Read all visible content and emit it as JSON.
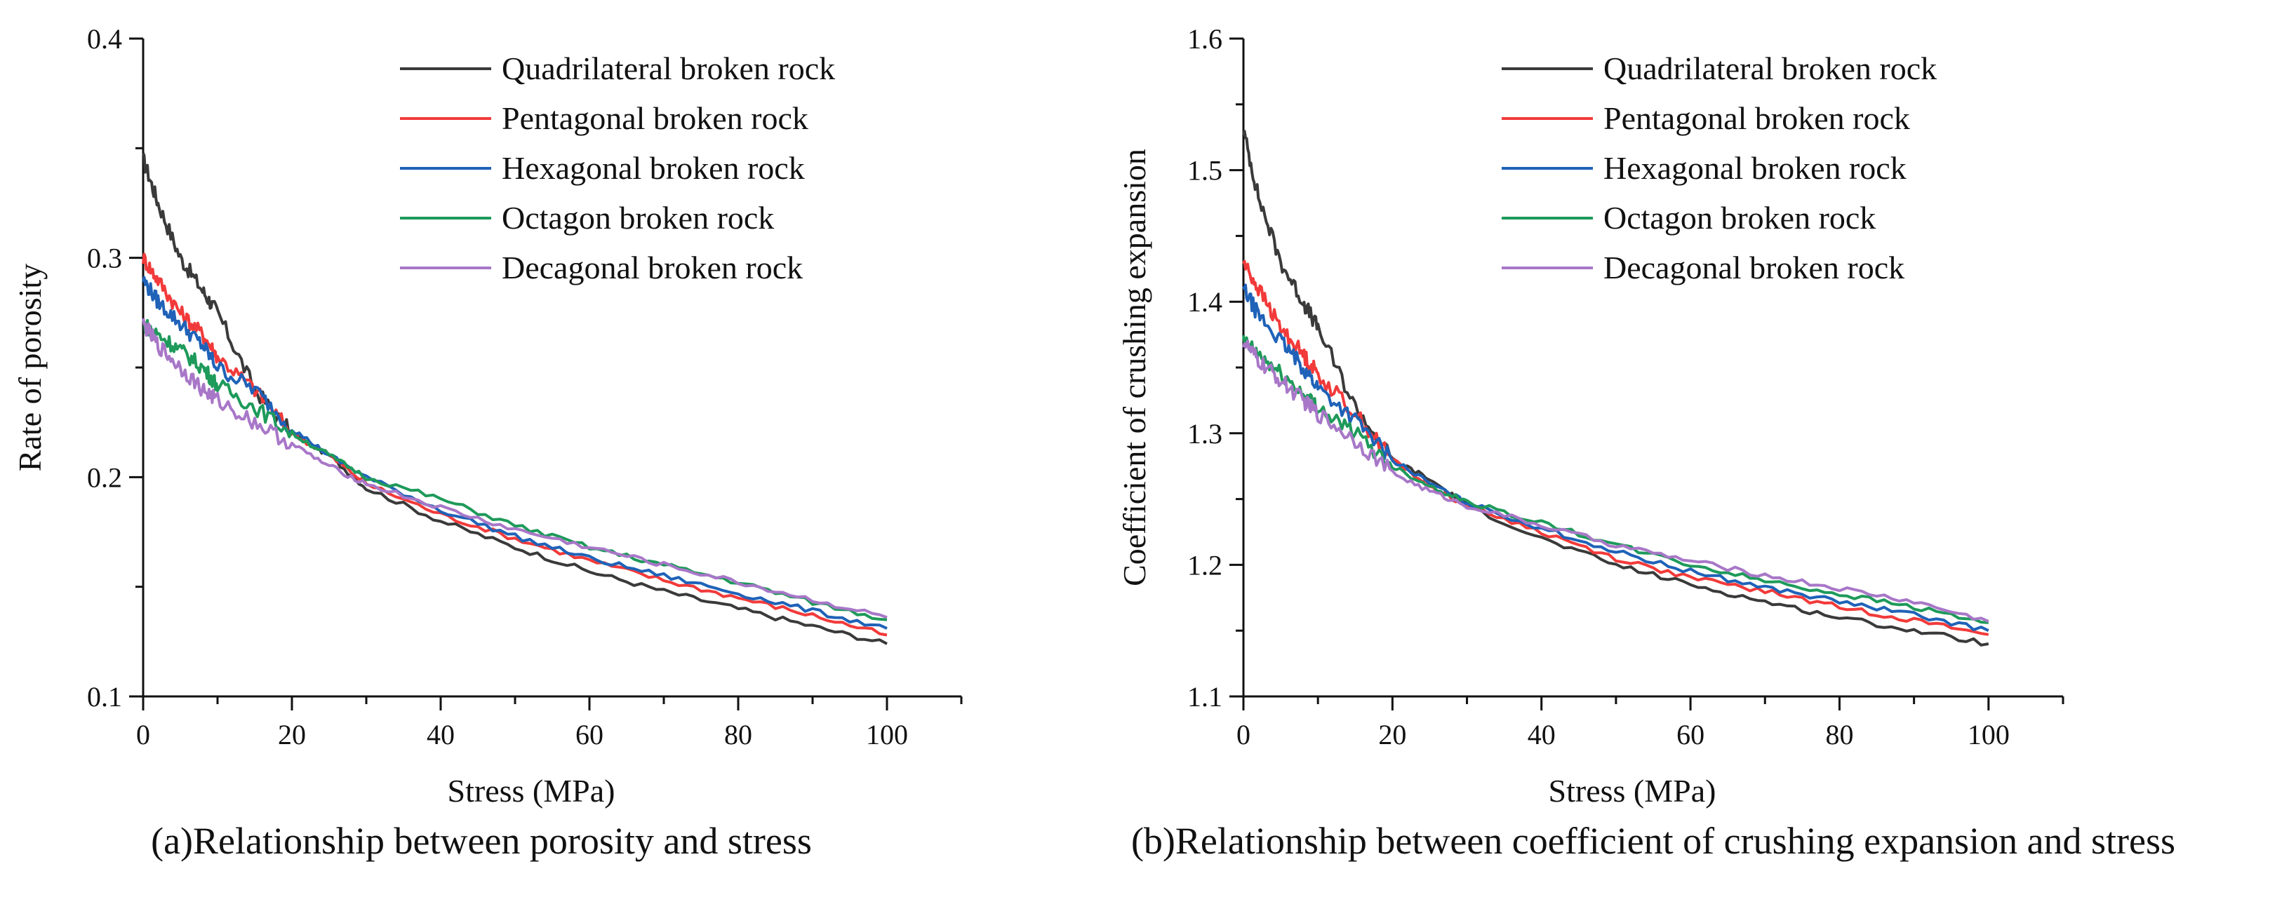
{
  "captions": {
    "a": "(a)Relationship between porosity and stress",
    "b": "(b)Relationship between coefficient of crushing expansion and stress"
  },
  "colors": {
    "Quadrilateral broken rock": "#3a3a3a",
    "Pentagonal broken rock": "#f23a3a",
    "Hexagonal broken rock": "#1f62b8",
    "Octagon broken rock": "#1e9a5a",
    "Decagonal broken rock": "#a877c8"
  },
  "chart_data": [
    {
      "type": "line",
      "xlabel": "Stress (MPa)",
      "ylabel": "Rate of porosity",
      "xlim": [
        0,
        110
      ],
      "ylim": [
        0.1,
        0.4
      ],
      "xticks": [
        "0",
        "20",
        "40",
        "60",
        "80",
        "100"
      ],
      "yticks": [
        "0.1",
        "0.2",
        "0.3",
        "0.4"
      ],
      "grid": false,
      "legend": "top-right",
      "series": [
        {
          "name": "Quadrilateral broken rock",
          "x": [
            0,
            2,
            5,
            8,
            10,
            15,
            20,
            25,
            30,
            40,
            50,
            60,
            70,
            80,
            90,
            100
          ],
          "y": [
            0.345,
            0.325,
            0.3,
            0.285,
            0.275,
            0.24,
            0.22,
            0.21,
            0.195,
            0.18,
            0.168,
            0.157,
            0.148,
            0.14,
            0.132,
            0.124
          ]
        },
        {
          "name": "Pentagonal broken rock",
          "x": [
            0,
            2,
            5,
            8,
            10,
            15,
            20,
            25,
            30,
            40,
            50,
            60,
            70,
            80,
            90,
            100
          ],
          "y": [
            0.3,
            0.29,
            0.275,
            0.265,
            0.255,
            0.24,
            0.22,
            0.21,
            0.197,
            0.183,
            0.172,
            0.162,
            0.153,
            0.145,
            0.137,
            0.128
          ]
        },
        {
          "name": "Hexagonal broken rock",
          "x": [
            0,
            2,
            5,
            8,
            10,
            15,
            20,
            25,
            30,
            40,
            50,
            60,
            70,
            80,
            90,
            100
          ],
          "y": [
            0.29,
            0.28,
            0.27,
            0.26,
            0.25,
            0.24,
            0.222,
            0.21,
            0.2,
            0.185,
            0.173,
            0.163,
            0.155,
            0.147,
            0.139,
            0.131
          ]
        },
        {
          "name": "Octagon broken rock",
          "x": [
            0,
            2,
            5,
            8,
            10,
            15,
            20,
            25,
            30,
            40,
            50,
            60,
            70,
            80,
            90,
            100
          ],
          "y": [
            0.27,
            0.265,
            0.258,
            0.25,
            0.242,
            0.232,
            0.22,
            0.21,
            0.2,
            0.19,
            0.178,
            0.168,
            0.16,
            0.152,
            0.143,
            0.135
          ]
        },
        {
          "name": "Decagonal broken rock",
          "x": [
            0,
            2,
            5,
            8,
            10,
            15,
            20,
            25,
            30,
            40,
            50,
            60,
            70,
            80,
            90,
            100
          ],
          "y": [
            0.27,
            0.26,
            0.25,
            0.24,
            0.235,
            0.225,
            0.215,
            0.205,
            0.197,
            0.186,
            0.176,
            0.168,
            0.16,
            0.152,
            0.144,
            0.136
          ]
        }
      ]
    },
    {
      "type": "line",
      "xlabel": "Stress (MPa)",
      "ylabel": "Coefficient of crushing expansion",
      "xlim": [
        0,
        110
      ],
      "ylim": [
        1.1,
        1.6
      ],
      "xticks": [
        "0",
        "20",
        "40",
        "60",
        "80",
        "100"
      ],
      "yticks": [
        "1.1",
        "1.2",
        "1.3",
        "1.4",
        "1.5",
        "1.6"
      ],
      "grid": false,
      "legend": "top-right",
      "series": [
        {
          "name": "Quadrilateral broken rock",
          "x": [
            0,
            2,
            5,
            8,
            10,
            15,
            20,
            25,
            30,
            40,
            50,
            60,
            70,
            80,
            90,
            100
          ],
          "y": [
            1.53,
            1.48,
            1.43,
            1.4,
            1.38,
            1.32,
            1.28,
            1.265,
            1.245,
            1.22,
            1.2,
            1.185,
            1.172,
            1.16,
            1.15,
            1.14
          ]
        },
        {
          "name": "Pentagonal broken rock",
          "x": [
            0,
            2,
            5,
            8,
            10,
            15,
            20,
            25,
            30,
            40,
            50,
            60,
            70,
            80,
            90,
            100
          ],
          "y": [
            1.43,
            1.41,
            1.38,
            1.36,
            1.345,
            1.315,
            1.28,
            1.26,
            1.245,
            1.225,
            1.205,
            1.19,
            1.18,
            1.168,
            1.158,
            1.147
          ]
        },
        {
          "name": "Hexagonal broken rock",
          "x": [
            0,
            2,
            5,
            8,
            10,
            15,
            20,
            25,
            30,
            40,
            50,
            60,
            70,
            80,
            90,
            100
          ],
          "y": [
            1.41,
            1.39,
            1.37,
            1.35,
            1.335,
            1.31,
            1.28,
            1.262,
            1.247,
            1.228,
            1.21,
            1.195,
            1.183,
            1.172,
            1.162,
            1.15
          ]
        },
        {
          "name": "Octagon broken rock",
          "x": [
            0,
            2,
            5,
            8,
            10,
            15,
            20,
            25,
            30,
            40,
            50,
            60,
            70,
            80,
            90,
            100
          ],
          "y": [
            1.37,
            1.36,
            1.345,
            1.33,
            1.32,
            1.3,
            1.275,
            1.26,
            1.248,
            1.232,
            1.215,
            1.2,
            1.188,
            1.178,
            1.168,
            1.156
          ]
        },
        {
          "name": "Decagonal broken rock",
          "x": [
            0,
            2,
            5,
            8,
            10,
            15,
            20,
            25,
            30,
            40,
            50,
            60,
            70,
            80,
            90,
            100
          ],
          "y": [
            1.37,
            1.355,
            1.34,
            1.325,
            1.315,
            1.295,
            1.27,
            1.256,
            1.245,
            1.23,
            1.215,
            1.203,
            1.192,
            1.182,
            1.172,
            1.157
          ]
        }
      ]
    }
  ]
}
